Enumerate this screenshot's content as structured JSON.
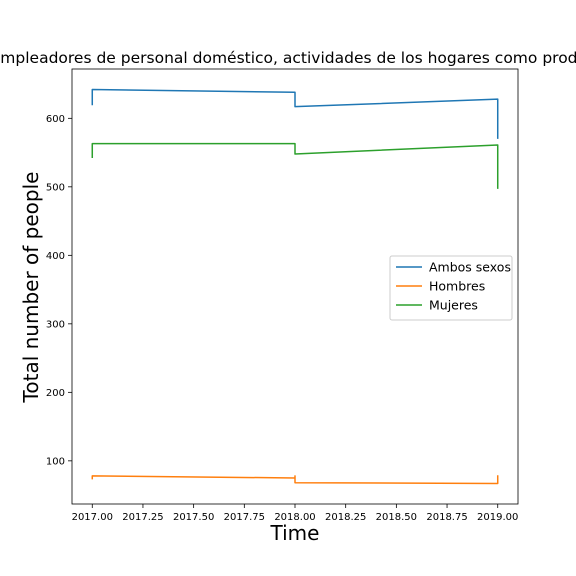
{
  "chart_data": {
    "type": "line",
    "title": "Como empleadores de personal doméstico, actividades de los hogares como productores",
    "xlabel": "Time",
    "ylabel": "Total number of people",
    "xlim": [
      1969.96,
      2019.04
    ],
    "ylim": [
      1969.96,
      2019.04
    ],
    "xticks": [
      2017.0,
      2017.25,
      2017.5,
      2017.75,
      2018.0,
      2018.25,
      2018.5,
      2018.75,
      2019.0
    ],
    "xtick_labels": [
      "2017.00",
      "2017.25",
      "2017.50",
      "2017.75",
      "2018.00",
      "2018.25",
      "2018.50",
      "2018.75",
      "2019.00"
    ],
    "yticks": [
      100,
      200,
      300,
      400,
      500,
      600
    ],
    "ytick_labels": [
      "100",
      "200",
      "300",
      "400",
      "500",
      "600"
    ],
    "legend_position": "center-right",
    "grid": false,
    "series": [
      {
        "name": "Ambos sexos",
        "color": "#1f77b4",
        "points": [
          [
            2017.0,
            619
          ],
          [
            2017.0,
            642
          ],
          [
            2018.0,
            638
          ],
          [
            2018.0,
            617
          ],
          [
            2019.0,
            628
          ],
          [
            2019.0,
            570
          ]
        ]
      },
      {
        "name": "Hombres",
        "color": "#ff7f0e",
        "points": [
          [
            2017.0,
            73
          ],
          [
            2017.0,
            78
          ],
          [
            2018.0,
            75
          ],
          [
            2018.0,
            78
          ],
          [
            2018.0,
            68
          ],
          [
            2019.0,
            67
          ],
          [
            2019.0,
            79
          ]
        ]
      },
      {
        "name": "Mujeres",
        "color": "#2ca02c",
        "points": [
          [
            2017.0,
            542
          ],
          [
            2017.0,
            563
          ],
          [
            2018.0,
            563
          ],
          [
            2018.0,
            548
          ],
          [
            2019.0,
            561
          ],
          [
            2019.0,
            497
          ]
        ]
      }
    ]
  }
}
